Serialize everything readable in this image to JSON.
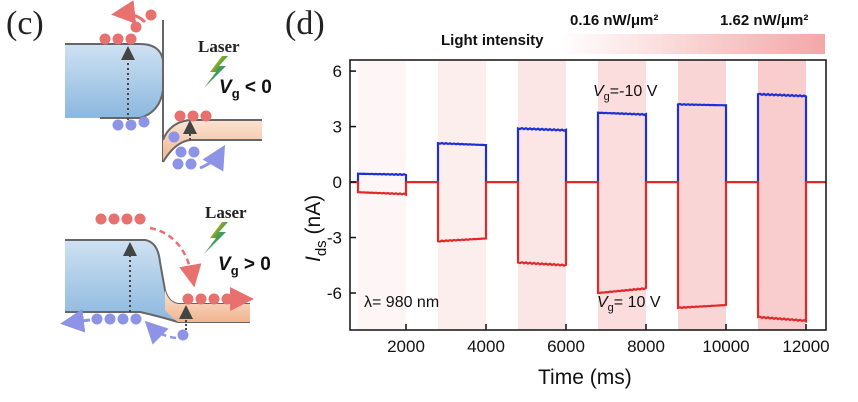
{
  "panel_c": {
    "label": "(c)",
    "top": {
      "laser_label": "Laser",
      "vg_var": "V",
      "vg_sub": "g",
      "vg_cond": " < 0"
    },
    "bottom": {
      "laser_label": "Laser",
      "vg_var": "V",
      "vg_sub": "g",
      "vg_cond": " > 0"
    },
    "colors": {
      "electron": "#e8706e",
      "hole": "#8d94e6",
      "left_band": "#a9cbe6",
      "right_band": "#f4c6a8"
    }
  },
  "panel_d": {
    "label": "(d)",
    "light_intensity_label": "Light intensity",
    "intensity_low": "0.16 nW/μm²",
    "intensity_high": "1.62 nW/μm²",
    "wavelength_label": "λ= 980 nm",
    "vg_neg_label": {
      "var": "V",
      "sub": "g",
      "rest": "=-10 V"
    },
    "vg_pos_label": {
      "var": "V",
      "sub": "g",
      "rest": "= 10 V"
    }
  },
  "chart_data": {
    "type": "line",
    "xlabel": "Time (ms)",
    "ylabel": {
      "var": "I",
      "sub": "ds",
      "unit": " (nA)"
    },
    "xlim": [
      600,
      12500
    ],
    "ylim": [
      -8,
      6.6
    ],
    "xticks": [
      2000,
      4000,
      6000,
      8000,
      10000,
      12000
    ],
    "yticks": [
      6,
      3,
      0,
      -3,
      -6
    ],
    "grid": false,
    "illumination_windows_ms": [
      [
        800,
        2000
      ],
      [
        2800,
        4000
      ],
      [
        4800,
        6000
      ],
      [
        6800,
        8000
      ],
      [
        8800,
        10000
      ],
      [
        10800,
        12000
      ]
    ],
    "series": [
      {
        "name": "Vg=-10 V",
        "color": "#1f2fd6",
        "on_values_start": [
          0.45,
          2.1,
          2.9,
          3.75,
          4.2,
          4.75
        ],
        "on_values_end": [
          0.4,
          2.0,
          2.8,
          3.65,
          4.15,
          4.65
        ],
        "off_value": 0
      },
      {
        "name": "Vg= 10 V",
        "color": "#e02a2a",
        "on_values_start": [
          -0.55,
          -3.2,
          -4.35,
          -6.0,
          -6.8,
          -7.3
        ],
        "on_values_end": [
          -0.65,
          -3.05,
          -4.5,
          -5.75,
          -6.65,
          -7.5
        ],
        "off_value": 0
      }
    ]
  }
}
